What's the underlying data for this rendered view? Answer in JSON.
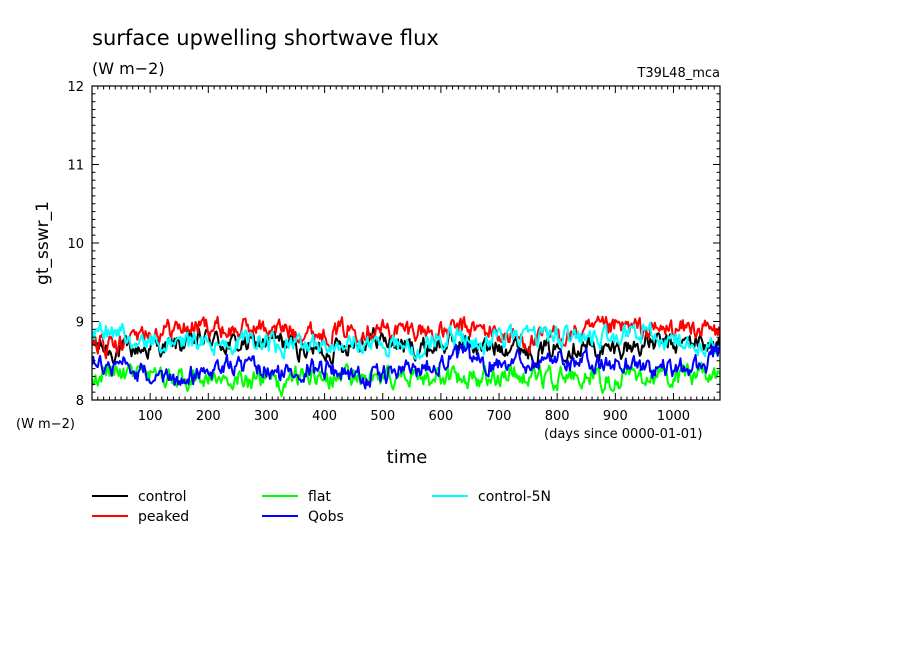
{
  "chart_data": {
    "type": "line",
    "title": "surface upwelling shortwave flux",
    "subtitle": "(W m−2)",
    "run_label": "T39L48_mca",
    "ylabel": "gt_sswr_1",
    "yunits": "(W m−2)",
    "xlabel": "time",
    "xunits": "(days since 0000-01-01)",
    "xlim": [
      0,
      1080
    ],
    "ylim": [
      8,
      12
    ],
    "xticks": [
      100,
      200,
      300,
      400,
      500,
      600,
      700,
      800,
      900,
      1000
    ],
    "yticks": [
      8,
      9,
      10,
      11,
      12
    ],
    "xtick_labels": [
      "100",
      "200",
      "300",
      "400",
      "500",
      "600",
      "700",
      "800",
      "900",
      "1000"
    ],
    "ytick_labels": [
      "8",
      "9",
      "10",
      "11",
      "12"
    ],
    "grid": false,
    "legend_position": "bottom",
    "series": [
      {
        "name": "control",
        "color": "#000000",
        "x": [
          0,
          40,
          80,
          120,
          160,
          200,
          240,
          280,
          320,
          360,
          400,
          440,
          480,
          520,
          560,
          600,
          640,
          680,
          720,
          760,
          800,
          840,
          880,
          920,
          960,
          1000,
          1040,
          1080
        ],
        "values": [
          8.7,
          8.62,
          8.65,
          8.68,
          8.72,
          8.78,
          8.7,
          8.72,
          8.75,
          8.65,
          8.62,
          8.72,
          8.8,
          8.72,
          8.65,
          8.7,
          8.72,
          8.66,
          8.72,
          8.62,
          8.66,
          8.7,
          8.62,
          8.68,
          8.72,
          8.7,
          8.75,
          8.68
        ]
      },
      {
        "name": "peaked",
        "color": "#ff0000",
        "x": [
          0,
          40,
          80,
          120,
          160,
          200,
          240,
          280,
          320,
          360,
          400,
          440,
          480,
          520,
          560,
          600,
          640,
          680,
          720,
          760,
          800,
          840,
          880,
          920,
          960,
          1000,
          1040,
          1080
        ],
        "values": [
          8.72,
          8.68,
          8.8,
          8.9,
          8.92,
          8.95,
          8.88,
          8.92,
          8.9,
          8.88,
          8.85,
          8.9,
          8.92,
          8.88,
          8.9,
          8.85,
          8.92,
          8.88,
          8.8,
          8.75,
          8.82,
          8.85,
          8.9,
          8.92,
          8.88,
          8.9,
          8.92,
          8.85
        ]
      },
      {
        "name": "flat",
        "color": "#00ff00",
        "x": [
          0,
          40,
          80,
          120,
          160,
          200,
          240,
          280,
          320,
          360,
          400,
          440,
          480,
          520,
          560,
          600,
          640,
          680,
          720,
          760,
          800,
          840,
          880,
          920,
          960,
          1000,
          1040,
          1080
        ],
        "values": [
          8.28,
          8.35,
          8.28,
          8.32,
          8.25,
          8.3,
          8.28,
          8.25,
          8.22,
          8.3,
          8.28,
          8.32,
          8.25,
          8.28,
          8.3,
          8.25,
          8.3,
          8.28,
          8.32,
          8.3,
          8.28,
          8.3,
          8.25,
          8.28,
          8.3,
          8.28,
          8.32,
          8.3
        ]
      },
      {
        "name": "control-5N",
        "color": "#00ffff",
        "x": [
          0,
          40,
          80,
          120,
          160,
          200,
          240,
          280,
          320,
          360,
          400,
          440,
          480,
          520,
          560,
          600,
          640,
          680,
          720,
          760,
          800,
          840,
          880,
          920,
          960,
          1000,
          1040,
          1080
        ],
        "values": [
          8.8,
          8.85,
          8.82,
          8.75,
          8.72,
          8.7,
          8.72,
          8.78,
          8.7,
          8.68,
          8.72,
          8.75,
          8.7,
          8.72,
          8.65,
          8.82,
          8.78,
          8.75,
          8.8,
          8.78,
          8.82,
          8.78,
          8.8,
          8.88,
          8.82,
          8.78,
          8.72,
          8.65
        ]
      },
      {
        "name": "Qobs",
        "color": "#0000ff",
        "x": [
          0,
          40,
          80,
          120,
          160,
          200,
          240,
          280,
          320,
          360,
          400,
          440,
          480,
          520,
          560,
          600,
          640,
          680,
          720,
          760,
          800,
          840,
          880,
          920,
          960,
          1000,
          1040,
          1080
        ],
        "values": [
          8.55,
          8.45,
          8.35,
          8.2,
          8.3,
          8.4,
          8.45,
          8.38,
          8.32,
          8.4,
          8.42,
          8.35,
          8.28,
          8.35,
          8.4,
          8.5,
          8.55,
          8.45,
          8.52,
          8.48,
          8.55,
          8.48,
          8.45,
          8.48,
          8.4,
          8.38,
          8.42,
          8.6
        ]
      }
    ]
  }
}
